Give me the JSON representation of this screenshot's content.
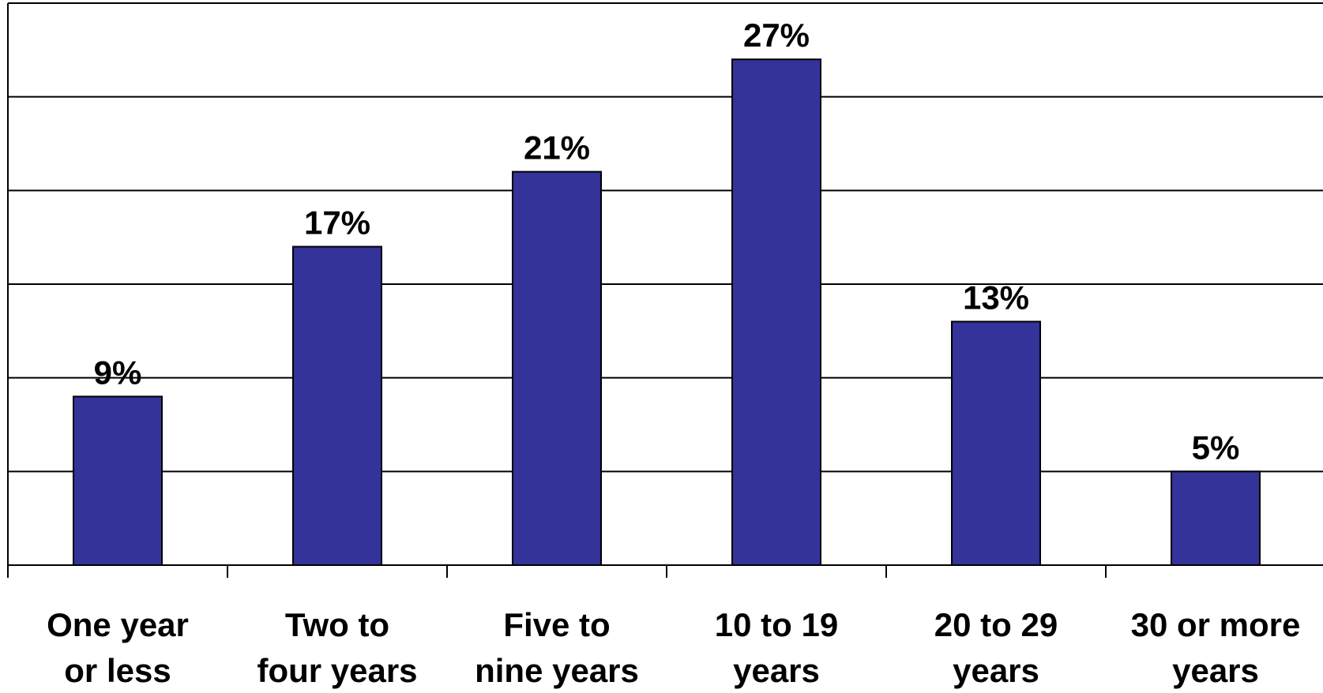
{
  "chart_data": {
    "type": "bar",
    "categories": [
      [
        "One year",
        "or less"
      ],
      [
        "Two to",
        "four years"
      ],
      [
        "Five to",
        "nine years"
      ],
      [
        "10 to 19",
        "years"
      ],
      [
        "20 to 29",
        "years"
      ],
      [
        "30 or more",
        "years"
      ]
    ],
    "values": [
      9,
      17,
      21,
      27,
      13,
      5
    ],
    "value_labels": [
      "9%",
      "17%",
      "21%",
      "27%",
      "13%",
      "5%"
    ],
    "ylim": [
      0,
      30
    ],
    "grid": true,
    "title": "",
    "xlabel": "",
    "ylabel": "",
    "bar_color": "#333399",
    "bar_outline_color": "#000000",
    "gridline_color": "#000000"
  }
}
